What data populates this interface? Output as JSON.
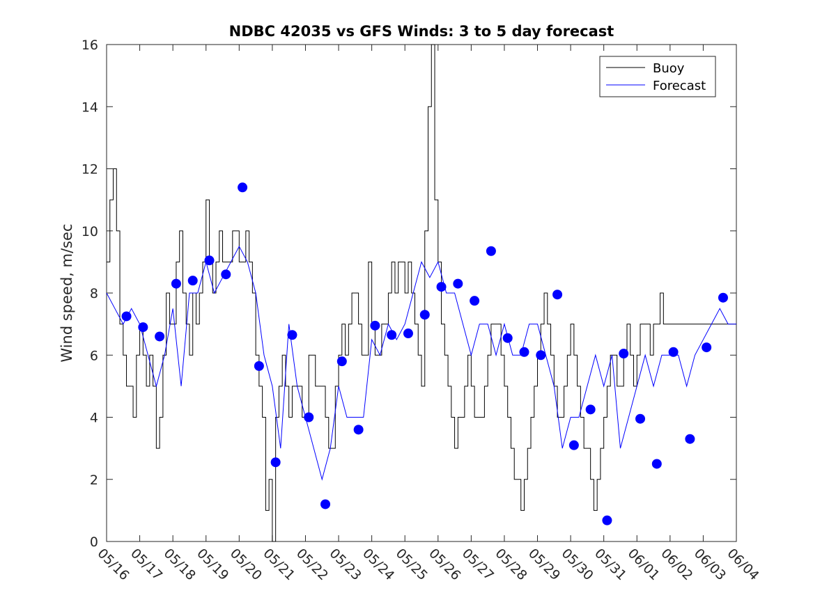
{
  "chart_data": {
    "type": "line",
    "title": "NDBC 42035 vs GFS Winds: 3 to 5 day forecast",
    "xlabel": "",
    "ylabel": "Wind speed, m/sec",
    "x_range_dates": [
      "05/16",
      "06/04"
    ],
    "ylim": [
      0,
      16
    ],
    "yticks": [
      0,
      2,
      4,
      6,
      8,
      10,
      12,
      14,
      16
    ],
    "xtick_labels": [
      "05/16",
      "05/17",
      "05/18",
      "05/19",
      "05/20",
      "05/21",
      "05/22",
      "05/23",
      "05/24",
      "05/25",
      "05/26",
      "05/27",
      "05/28",
      "05/29",
      "05/30",
      "05/31",
      "06/01",
      "06/02",
      "06/03",
      "06/04"
    ],
    "grid": false,
    "legend": {
      "position": "top-right",
      "entries": [
        "Buoy",
        "Forecast"
      ]
    },
    "colors": {
      "buoy": "#000000",
      "forecast": "#0000ff",
      "marker": "#0000ff"
    },
    "series": [
      {
        "name": "Buoy",
        "style": "step-line",
        "x": [
          0,
          0.1,
          0.2,
          0.3,
          0.4,
          0.5,
          0.6,
          0.7,
          0.8,
          0.9,
          1.0,
          1.1,
          1.2,
          1.3,
          1.4,
          1.5,
          1.6,
          1.7,
          1.8,
          1.9,
          2.0,
          2.1,
          2.2,
          2.3,
          2.4,
          2.5,
          2.6,
          2.7,
          2.8,
          2.9,
          3.0,
          3.1,
          3.2,
          3.3,
          3.4,
          3.5,
          3.6,
          3.7,
          3.8,
          3.9,
          4.0,
          4.1,
          4.2,
          4.3,
          4.4,
          4.5,
          4.6,
          4.7,
          4.8,
          4.9,
          5.0,
          5.1,
          5.2,
          5.3,
          5.4,
          5.5,
          5.6,
          5.7,
          5.8,
          5.9,
          6.0,
          6.1,
          6.2,
          6.3,
          6.4,
          6.5,
          6.6,
          6.7,
          6.8,
          6.9,
          7.0,
          7.1,
          7.2,
          7.3,
          7.4,
          7.5,
          7.6,
          7.7,
          7.8,
          7.9,
          8.0,
          8.1,
          8.2,
          8.3,
          8.4,
          8.5,
          8.6,
          8.7,
          8.8,
          8.9,
          9.0,
          9.1,
          9.2,
          9.3,
          9.4,
          9.5,
          9.6,
          9.7,
          9.8,
          9.9,
          10.0,
          10.1,
          10.2,
          10.3,
          10.4,
          10.5,
          10.6,
          10.7,
          10.8,
          10.9,
          11.0,
          11.1,
          11.2,
          11.3,
          11.4,
          11.5,
          11.6,
          11.7,
          11.8,
          11.9,
          12.0,
          12.1,
          12.2,
          12.3,
          12.4,
          12.5,
          12.6,
          12.7,
          12.8,
          12.9,
          13.0,
          13.1,
          13.2,
          13.3,
          13.4,
          13.5,
          13.6,
          13.7,
          13.8,
          13.9,
          14.0,
          14.1,
          14.2,
          14.3,
          14.4,
          14.5,
          14.6,
          14.7,
          14.8,
          14.9,
          15.0,
          15.1,
          15.2,
          15.3,
          15.4,
          15.5,
          15.6,
          15.7,
          15.8,
          15.9,
          16.0,
          16.1,
          16.2,
          16.3,
          16.4,
          16.5,
          16.6,
          16.7,
          16.8,
          16.9,
          17.0,
          17.1,
          17.2,
          17.3,
          17.4,
          17.5,
          17.6,
          17.7,
          17.8,
          17.9,
          18.0,
          18.1,
          18.2,
          18.3,
          18.4,
          18.5,
          18.6,
          18.7,
          18.8,
          18.9,
          19.0
        ],
        "values": [
          9,
          11,
          12,
          10,
          7,
          6,
          5,
          5,
          4,
          6,
          7,
          6,
          5,
          6,
          5,
          3,
          4,
          6,
          8,
          7,
          7,
          9,
          10,
          8,
          7,
          6,
          8,
          7,
          8,
          9,
          11,
          9,
          8,
          9,
          10,
          9,
          9,
          9,
          10,
          10,
          9,
          9,
          10,
          9,
          8,
          6,
          5,
          4,
          1,
          2,
          0,
          4,
          5,
          6,
          5,
          4,
          5,
          5,
          5,
          4,
          4,
          6,
          6,
          5,
          5,
          5,
          4,
          3,
          3,
          5,
          6,
          7,
          6,
          7,
          8,
          8,
          7,
          6,
          6,
          9,
          7,
          6,
          6,
          7,
          7,
          8,
          9,
          8,
          9,
          9,
          8,
          9,
          8,
          7,
          6,
          5,
          10,
          14,
          16,
          11,
          9,
          7,
          6,
          5,
          4,
          3,
          4,
          4,
          5,
          6,
          5,
          4,
          4,
          4,
          5,
          6,
          7,
          7,
          7,
          6,
          5,
          4,
          3,
          2,
          2,
          1,
          2,
          3,
          4,
          5,
          6,
          7,
          8,
          7,
          6,
          5,
          4,
          4,
          5,
          6,
          7,
          6,
          5,
          4,
          3,
          3,
          2,
          1,
          2,
          3,
          4,
          5,
          6,
          6,
          5,
          5,
          6,
          7,
          6,
          5,
          6,
          7,
          7,
          7,
          6,
          7,
          7,
          8,
          7,
          7,
          7,
          7,
          7,
          7,
          7,
          7,
          7,
          7,
          7,
          7,
          7,
          7,
          7,
          7,
          7,
          7,
          7,
          7,
          7,
          7,
          7
        ]
      },
      {
        "name": "Forecast",
        "style": "multiple-overlapping-lines",
        "x": [
          0,
          0.25,
          0.5,
          0.75,
          1.0,
          1.25,
          1.5,
          1.75,
          2.0,
          2.25,
          2.5,
          2.75,
          3.0,
          3.25,
          3.5,
          3.75,
          4.0,
          4.25,
          4.5,
          4.75,
          5.0,
          5.25,
          5.5,
          5.75,
          6.0,
          6.25,
          6.5,
          6.75,
          7.0,
          7.25,
          7.5,
          7.75,
          8.0,
          8.25,
          8.5,
          8.75,
          9.0,
          9.25,
          9.5,
          9.75,
          10.0,
          10.25,
          10.5,
          10.75,
          11.0,
          11.25,
          11.5,
          11.75,
          12.0,
          12.25,
          12.5,
          12.75,
          13.0,
          13.25,
          13.5,
          13.75,
          14.0,
          14.25,
          14.5,
          14.75,
          15.0,
          15.25,
          15.5,
          15.75,
          16.0,
          16.25,
          16.5,
          16.75,
          17.0,
          17.25,
          17.5,
          17.75,
          18.0,
          18.25,
          18.5,
          18.75,
          19.0
        ],
        "values": [
          8,
          7.5,
          7,
          7.5,
          7,
          6,
          5,
          6,
          7.5,
          5,
          8,
          8,
          9,
          8,
          8.5,
          9,
          9.5,
          9,
          8,
          6,
          5,
          3,
          7,
          5,
          4,
          3,
          2,
          3,
          5,
          4,
          4,
          4,
          6.5,
          6,
          7,
          6.5,
          7,
          8,
          9,
          8.5,
          9,
          8,
          8,
          7,
          6,
          7,
          7,
          6,
          7,
          6,
          6,
          7,
          7,
          6,
          5,
          3,
          4,
          4,
          5,
          6,
          5,
          6,
          3,
          4,
          5,
          6,
          5,
          6,
          6,
          6,
          5,
          6,
          6.5,
          7,
          7.5,
          7,
          7
        ]
      }
    ],
    "markers": {
      "name": "Forecast",
      "x": [
        0.6,
        1.1,
        1.6,
        2.1,
        2.6,
        3.1,
        3.6,
        4.1,
        4.6,
        5.1,
        5.6,
        6.1,
        6.6,
        7.1,
        7.6,
        8.1,
        8.6,
        9.1,
        9.6,
        10.1,
        10.6,
        11.1,
        11.6,
        12.1,
        12.6,
        13.1,
        13.6,
        14.1,
        14.6,
        15.1,
        15.6,
        16.1,
        16.6,
        17.1,
        17.6,
        18.1,
        18.6
      ],
      "values": [
        7.25,
        6.9,
        6.6,
        8.3,
        8.4,
        9.05,
        8.6,
        11.4,
        5.65,
        2.55,
        6.65,
        4.0,
        1.2,
        5.8,
        3.6,
        6.95,
        6.65,
        6.7,
        7.3,
        8.2,
        8.3,
        7.75,
        9.35,
        6.55,
        6.1,
        6.0,
        7.95,
        3.1,
        4.25,
        0.68,
        6.05,
        3.95,
        2.5,
        6.1,
        3.3,
        6.25,
        7.85
      ]
    }
  }
}
